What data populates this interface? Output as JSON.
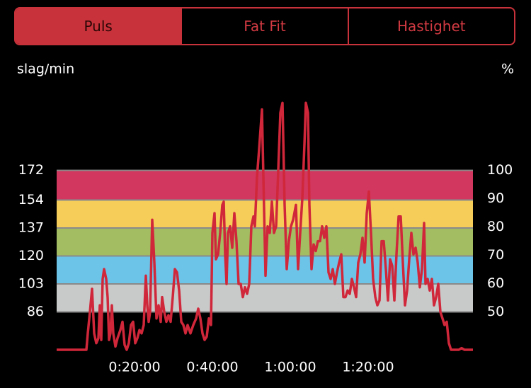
{
  "tabs": [
    "Puls",
    "Fat Fit",
    "Hastighet"
  ],
  "chart_data": {
    "type": "line",
    "y_label": "slag/min",
    "y2_label": "%",
    "color": "#d0273a",
    "xlim": [
      0,
      6415
    ],
    "xticks": [
      {
        "value": 1200,
        "label": "0:20:00"
      },
      {
        "value": 2400,
        "label": "0:40:00"
      },
      {
        "value": 3600,
        "label": "1:00:00"
      },
      {
        "value": 4800,
        "label": "1:20:00"
      }
    ],
    "ylim": [
      63,
      214
    ],
    "yticks": [
      86,
      103,
      120,
      137,
      154,
      172
    ],
    "y2lim": [
      36.6,
      124.4
    ],
    "y2ticks": [
      50,
      60,
      70,
      80,
      90,
      100
    ],
    "grid": true,
    "zones": [
      {
        "from": 86,
        "to": 103,
        "color": "#c8caca"
      },
      {
        "from": 103,
        "to": 120,
        "color": "#6cc5e9"
      },
      {
        "from": 120,
        "to": 137,
        "color": "#a3bd62"
      },
      {
        "from": 137,
        "to": 154,
        "color": "#f7cd5a"
      },
      {
        "from": 154,
        "to": 172,
        "color": "#d2375f"
      }
    ],
    "x": [
      0,
      458,
      480,
      513,
      545,
      578,
      611,
      644,
      665,
      687,
      709,
      731,
      764,
      785,
      807,
      829,
      851,
      873,
      906,
      938,
      982,
      1015,
      1047,
      1080,
      1113,
      1146,
      1178,
      1211,
      1244,
      1276,
      1309,
      1342,
      1375,
      1396,
      1418,
      1440,
      1473,
      1506,
      1538,
      1571,
      1604,
      1626,
      1658,
      1691,
      1724,
      1757,
      1789,
      1822,
      1855,
      1887,
      1920,
      1953,
      1986,
      2018,
      2062,
      2106,
      2149,
      2182,
      2215,
      2247,
      2280,
      2313,
      2346,
      2378,
      2400,
      2433,
      2455,
      2487,
      2520,
      2553,
      2575,
      2597,
      2618,
      2640,
      2673,
      2706,
      2738,
      2771,
      2804,
      2837,
      2869,
      2902,
      2935,
      2968,
      3000,
      3033,
      3055,
      3088,
      3120,
      3164,
      3186,
      3218,
      3251,
      3284,
      3317,
      3349,
      3382,
      3415,
      3448,
      3480,
      3513,
      3546,
      3578,
      3611,
      3644,
      3688,
      3720,
      3753,
      3786,
      3819,
      3840,
      3873,
      3895,
      3928,
      3960,
      3993,
      4026,
      4059,
      4091,
      4124,
      4157,
      4189,
      4222,
      4255,
      4288,
      4320,
      4353,
      4386,
      4419,
      4451,
      4484,
      4517,
      4549,
      4582,
      4615,
      4648,
      4680,
      4713,
      4746,
      4779,
      4811,
      4844,
      4877,
      4910,
      4942,
      4975,
      5008,
      5040,
      5073,
      5106,
      5139,
      5171,
      5204,
      5237,
      5269,
      5302,
      5335,
      5368,
      5400,
      5433,
      5466,
      5499,
      5531,
      5564,
      5597,
      5630,
      5662,
      5684,
      5717,
      5749,
      5782,
      5815,
      5848,
      5880,
      5913,
      5946,
      5978,
      6011,
      6044,
      6077,
      6197,
      6240,
      6284,
      6415
    ],
    "values": [
      63,
      63,
      73,
      86,
      100,
      73,
      67,
      70,
      90,
      69,
      106,
      112,
      106,
      95,
      69,
      73,
      90,
      73,
      65,
      70,
      75,
      80,
      66,
      63,
      67,
      78,
      80,
      67,
      70,
      75,
      73,
      78,
      108,
      90,
      80,
      86,
      142,
      116,
      82,
      90,
      80,
      95,
      86,
      80,
      84,
      80,
      95,
      112,
      110,
      99,
      80,
      78,
      73,
      78,
      73,
      78,
      82,
      88,
      82,
      73,
      69,
      71,
      82,
      78,
      134,
      146,
      118,
      121,
      134,
      151,
      153,
      121,
      103,
      134,
      138,
      125,
      146,
      129,
      103,
      103,
      95,
      101,
      97,
      103,
      138,
      144,
      138,
      168,
      185,
      209,
      168,
      108,
      138,
      134,
      153,
      134,
      138,
      172,
      207,
      213,
      151,
      112,
      129,
      138,
      142,
      151,
      112,
      134,
      155,
      189,
      213,
      207,
      151,
      112,
      127,
      123,
      129,
      129,
      138,
      131,
      138,
      110,
      106,
      112,
      103,
      110,
      116,
      121,
      95,
      95,
      99,
      97,
      106,
      101,
      95,
      116,
      121,
      131,
      116,
      146,
      159,
      134,
      106,
      95,
      90,
      93,
      129,
      129,
      112,
      93,
      118,
      114,
      93,
      121,
      144,
      144,
      116,
      90,
      99,
      118,
      134,
      121,
      125,
      116,
      101,
      112,
      140,
      103,
      106,
      99,
      106,
      90,
      95,
      103,
      86,
      82,
      78,
      80,
      67,
      63,
      63,
      64,
      63,
      63
    ]
  }
}
